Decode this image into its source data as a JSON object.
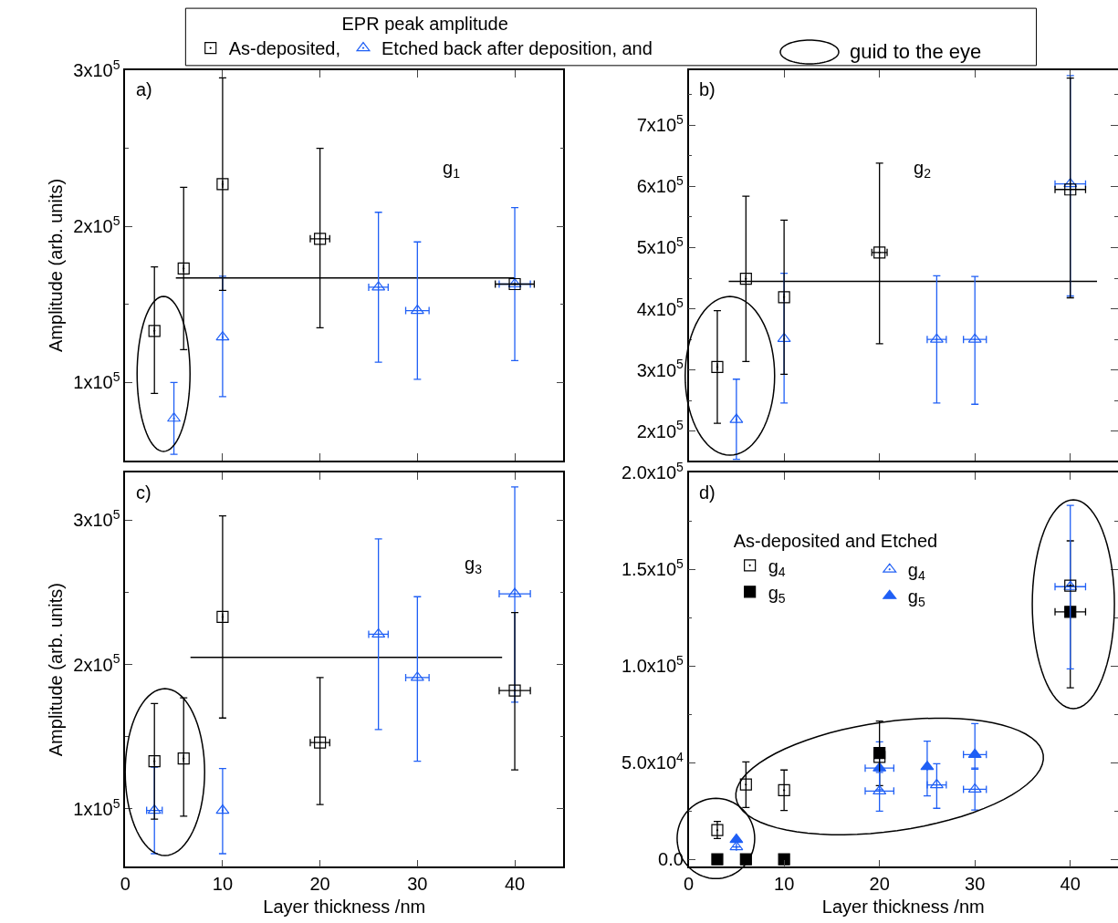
{
  "chart_data": [
    {
      "type": "scatter",
      "ylabel": "Amplitude (arb. units)",
      "annotations": [
        "a)",
        "g$_{1}$",
        "guid to the eye"
      ],
      "legend": "top",
      "legend_title": "EPR peak amplitude",
      "tick_labels": "y",
      "xlim": [
        0,
        45
      ],
      "xticks": [
        0,
        10,
        20,
        30,
        40
      ],
      "ylim": [
        50000,
        300000
      ],
      "yticks": [
        {
          "value": 100000,
          "label": "1x10$^{5}$"
        },
        {
          "value": 150000,
          "label": null
        },
        {
          "value": 200000,
          "label": "2x10$^{5}$"
        },
        {
          "value": 250000,
          "label": null
        },
        {
          "value": 300000,
          "label": "3x10$^{5}$"
        }
      ],
      "series": [
        {
          "name": "As-deposited,",
          "color": "#000000",
          "marker": "square-open",
          "x": [
            3,
            6,
            10,
            20,
            40
          ],
          "values": [
            133000,
            173000,
            227000,
            192000,
            163000
          ],
          "errors": [
            [
              93000,
              174000
            ],
            [
              121000,
              225000
            ],
            [
              159000,
              295000
            ],
            [
              135000,
              250000
            ],
            null
          ],
          "xerrors": [
            null,
            null,
            null,
            1,
            2
          ]
        },
        {
          "name": "Etched back after deposition, and",
          "color": "#1f5ff5",
          "marker": "triangle-open",
          "x": [
            5,
            10,
            26,
            30,
            40
          ],
          "values": [
            77000,
            129000,
            161000,
            146000,
            163000
          ],
          "errors": [
            [
              54000,
              100000
            ],
            [
              91000,
              168000
            ],
            [
              113000,
              209000
            ],
            [
              102000,
              190000
            ],
            [
              114000,
              212000
            ]
          ],
          "xerrors": [
            null,
            null,
            1,
            1.2,
            1.6
          ]
        },
        {
          "type": "line",
          "color": "#000000",
          "x": [
            5.2,
            40
          ],
          "values": [
            167000,
            167000
          ]
        }
      ]
    },
    {
      "type": "scatter",
      "annotations": [
        "b)",
        "g$_{2}$"
      ],
      "tick_labels": "y",
      "xlim": [
        0,
        45
      ],
      "xticks": [
        0,
        10,
        20,
        30,
        40
      ],
      "ylim": [
        152000,
        790000
      ],
      "yticks": [
        {
          "value": 200000,
          "label": "2x10$^{5}$"
        },
        {
          "value": 250000,
          "label": null
        },
        {
          "value": 300000,
          "label": "3x10$^{5}$"
        },
        {
          "value": 350000,
          "label": null
        },
        {
          "value": 400000,
          "label": "4x10$^{5}$"
        },
        {
          "value": 450000,
          "label": null
        },
        {
          "value": 500000,
          "label": "5x10$^{5}$"
        },
        {
          "value": 550000,
          "label": null
        },
        {
          "value": 600000,
          "label": "6x10$^{5}$"
        },
        {
          "value": 650000,
          "label": null
        },
        {
          "value": 700000,
          "label": "7x10$^{5}$"
        },
        {
          "value": 750000,
          "label": null
        }
      ],
      "series": [
        {
          "color": "#000000",
          "marker": "square-open",
          "x": [
            3,
            6,
            10,
            20,
            40
          ],
          "values": [
            305000,
            449000,
            419000,
            492000,
            595000
          ],
          "errors": [
            [
              213000,
              397000
            ],
            [
              314000,
              584000
            ],
            [
              293000,
              545000
            ],
            [
              343000,
              638000
            ],
            [
              418000,
              777000
            ]
          ],
          "xerrors": [
            null,
            null,
            null,
            0.8,
            1.6
          ]
        },
        {
          "color": "#1f5ff5",
          "marker": "triangle-open",
          "x": [
            5,
            10,
            26,
            30,
            40
          ],
          "values": [
            219000,
            351000,
            350000,
            350000,
            604000
          ],
          "errors": [
            [
              154000,
              285000
            ],
            [
              246000,
              458000
            ],
            [
              246000,
              454000
            ],
            [
              244000,
              453000
            ],
            [
              421000,
              781000
            ]
          ],
          "xerrors": [
            null,
            null,
            1,
            1.2,
            1.6
          ]
        },
        {
          "type": "line",
          "color": "#000000",
          "x": [
            4.2,
            42.8
          ],
          "values": [
            445000,
            445000
          ]
        }
      ]
    },
    {
      "type": "scatter",
      "xlabel": "Layer thickness /nm",
      "ylabel": "Amplitude (arb. units)",
      "annotations": [
        "c)",
        "g$_{3}$"
      ],
      "xlim": [
        0,
        45
      ],
      "xticks": [
        0,
        10,
        20,
        30,
        40
      ],
      "ylim": [
        60000,
        333000
      ],
      "yticks": [
        {
          "value": 100000,
          "label": "1x10$^{5}$"
        },
        {
          "value": 150000,
          "label": null
        },
        {
          "value": 200000,
          "label": "2x10$^{5}$"
        },
        {
          "value": 250000,
          "label": null
        },
        {
          "value": 300000,
          "label": "3x10$^{5}$"
        }
      ],
      "series": [
        {
          "color": "#000000",
          "marker": "square-open",
          "x": [
            3,
            6,
            10,
            20,
            40
          ],
          "values": [
            133000,
            135000,
            233000,
            146000,
            182000
          ],
          "errors": [
            [
              93000,
              173000
            ],
            [
              95000,
              177000
            ],
            [
              163000,
              303000
            ],
            [
              103000,
              191000
            ],
            [
              127000,
              236000
            ]
          ],
          "xerrors": [
            null,
            null,
            null,
            1,
            1.6
          ]
        },
        {
          "color": "#1f5ff5",
          "marker": "triangle-open",
          "x": [
            3,
            10,
            26,
            30,
            40
          ],
          "values": [
            99000,
            99000,
            221000,
            191000,
            249000
          ],
          "errors": [
            [
              69000,
              129000
            ],
            [
              69000,
              128000
            ],
            [
              155000,
              287000
            ],
            [
              133000,
              247000
            ],
            [
              174000,
              323000
            ]
          ],
          "xerrors": [
            0.8,
            null,
            1,
            1.2,
            1.6
          ]
        },
        {
          "type": "line",
          "color": "#000000",
          "x": [
            6.7,
            38.7
          ],
          "values": [
            205000,
            205000
          ]
        }
      ]
    },
    {
      "type": "scatter",
      "xlabel": "Layer thickness /nm",
      "annotations": [
        "d)"
      ],
      "legend": "top left",
      "legend_title": "As-deposited and Etched",
      "xlim": [
        0,
        45
      ],
      "xticks": [
        0,
        10,
        20,
        30,
        40
      ],
      "ylim": [
        -3800,
        200000
      ],
      "yticks": [
        {
          "value": 0,
          "label": "0.0"
        },
        {
          "value": 25000,
          "label": null
        },
        {
          "value": 50000,
          "label": "5.0x10$^{4}$"
        },
        {
          "value": 75000,
          "label": null
        },
        {
          "value": 100000,
          "label": "1.0x10$^{5}$"
        },
        {
          "value": 125000,
          "label": null
        },
        {
          "value": 150000,
          "label": "1.5x10$^{5}$"
        },
        {
          "value": 175000,
          "label": null
        },
        {
          "value": 200000,
          "label": "2.0x10$^{5}$"
        }
      ],
      "series": [
        {
          "name": "g$_{4}$",
          "color": "#000000",
          "marker": "square-open",
          "x": [
            3,
            6,
            10,
            20,
            40
          ],
          "values": [
            15100,
            38700,
            35800,
            53000,
            141500
          ],
          "errors": [
            [
              10800,
              19600
            ],
            [
              26800,
              50400
            ],
            [
              25300,
              46200
            ],
            null,
            null
          ]
        },
        {
          "name": "g$_{4}$",
          "color": "#1f5ff5",
          "marker": "triangle-open",
          "x": [
            5,
            20,
            26,
            30,
            40
          ],
          "values": [
            6400,
            35300,
            38500,
            36200,
            141000
          ],
          "errors": [
            null,
            [
              24900,
              45000
            ],
            [
              26400,
              49400
            ],
            [
              25500,
              47200
            ],
            [
              98500,
              183000
            ]
          ],
          "xerrors": [
            null,
            1.5,
            1,
            1.2,
            1.6
          ]
        },
        {
          "name": "g$_{5}$",
          "color": "#000000",
          "marker": "square",
          "x": [
            3,
            6,
            10,
            20,
            40
          ],
          "values": [
            0,
            0,
            0,
            55000,
            128000
          ],
          "errors": [
            null,
            null,
            null,
            [
              38100,
              71500
            ],
            [
              88700,
              164700
            ]
          ],
          "xerrors": [
            null,
            null,
            null,
            0.5,
            1.6
          ]
        },
        {
          "name": "g$_{5}$",
          "color": "#1f5ff5",
          "marker": "triangle",
          "x": [
            5,
            20,
            25,
            30
          ],
          "values": [
            10200,
            47200,
            47900,
            54200
          ],
          "errors": [
            null,
            [
              36000,
              60800
            ],
            [
              32800,
              61100
            ],
            [
              46600,
              70200
            ]
          ],
          "xerrors": [
            null,
            1.5,
            null,
            1.2
          ]
        }
      ]
    }
  ]
}
